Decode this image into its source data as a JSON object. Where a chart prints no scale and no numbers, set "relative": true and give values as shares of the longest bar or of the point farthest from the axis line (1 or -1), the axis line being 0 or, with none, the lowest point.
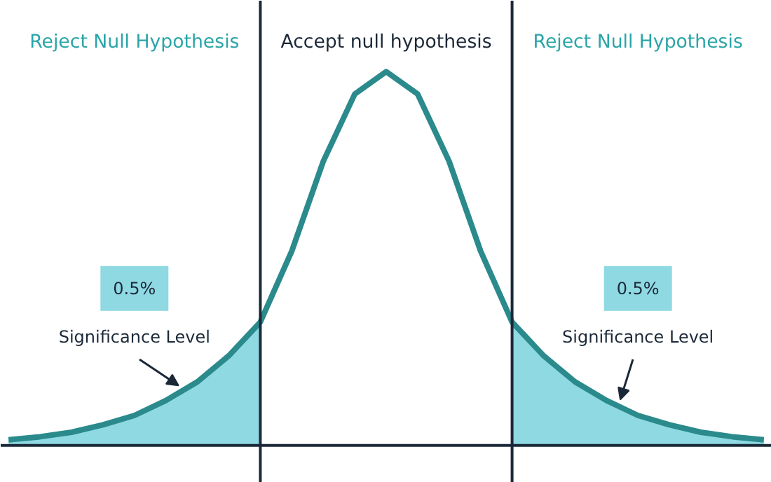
{
  "chart_data": {
    "type": "line",
    "relative": true,
    "tick_labels": false,
    "grid": false,
    "marker": "none",
    "line_style": "solid",
    "categories": [
      null,
      null,
      null,
      null,
      null,
      null,
      null,
      null,
      null,
      null,
      null,
      null,
      null,
      null,
      null,
      null,
      null,
      null,
      null,
      null,
      null,
      null,
      null,
      null,
      null
    ],
    "series": [
      {
        "type": "area",
        "color": "#8ed9e2",
        "values": [
          0.015,
          0.023,
          0.035,
          0.055,
          0.08,
          0.12,
          0.17,
          0.24,
          0.33,
          null,
          null,
          null,
          null,
          null,
          null,
          null,
          null,
          null,
          null,
          null,
          null,
          null,
          null,
          null,
          null
        ]
      },
      {
        "type": "area",
        "color": "#8ed9e2",
        "values": [
          null,
          null,
          null,
          null,
          null,
          null,
          null,
          null,
          null,
          null,
          null,
          null,
          null,
          null,
          null,
          null,
          0.33,
          0.24,
          0.17,
          0.12,
          0.08,
          0.055,
          0.035,
          0.023,
          0.015
        ]
      },
      {
        "color": "#2b8a8c",
        "values": [
          0.015,
          0.023,
          0.035,
          0.055,
          0.08,
          0.12,
          0.17,
          0.24,
          0.33,
          0.52,
          0.76,
          0.94,
          1.0,
          0.94,
          0.76,
          0.52,
          0.33,
          0.24,
          0.17,
          0.12,
          0.08,
          0.055,
          0.035,
          0.023,
          0.015
        ]
      }
    ],
    "annotations": [
      "Reject Null Hypothesis",
      "Accept null hypothesis",
      "Reject Null Hypothesis",
      "0.5%\nSignificance Level",
      "0.5%\nSignificance Level"
    ]
  }
}
